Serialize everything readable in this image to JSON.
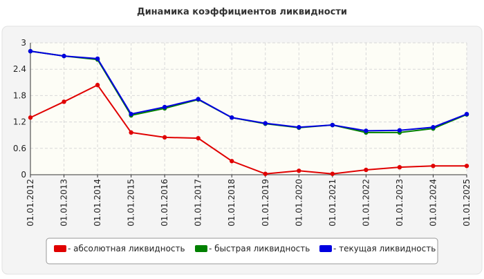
{
  "chart_data": {
    "type": "line",
    "title": "Динамика коэффициентов ликвидности",
    "categories": [
      "01.01.2012",
      "01.01.2013",
      "01.01.2014",
      "01.01.2015",
      "01.01.2016",
      "01.01.2017",
      "01.01.2018",
      "01.01.2019",
      "01.01.2020",
      "01.01.2021",
      "01.01.2022",
      "01.01.2023",
      "01.01.2024",
      "01.01.2025"
    ],
    "series": [
      {
        "name": "- абсолютная ликвидность",
        "color": "#e00000",
        "values": [
          1.3,
          1.66,
          2.04,
          0.96,
          0.85,
          0.83,
          0.31,
          0.02,
          0.09,
          0.02,
          0.11,
          0.17,
          0.2,
          0.2
        ]
      },
      {
        "name": "- быстрая ликвидность",
        "color": "#008000",
        "values": [
          2.81,
          2.7,
          2.62,
          1.35,
          1.51,
          1.71,
          1.3,
          1.16,
          1.07,
          1.13,
          0.96,
          0.96,
          1.05,
          1.37
        ]
      },
      {
        "name": "- текущая ликвидность",
        "color": "#0000e0",
        "values": [
          2.81,
          2.7,
          2.64,
          1.38,
          1.54,
          1.72,
          1.3,
          1.17,
          1.08,
          1.13,
          1.0,
          1.01,
          1.08,
          1.38
        ]
      }
    ],
    "ylim": [
      0,
      3
    ],
    "yticks": [
      0,
      0.6,
      1.2,
      1.8,
      2.4,
      3
    ],
    "grid": true
  }
}
